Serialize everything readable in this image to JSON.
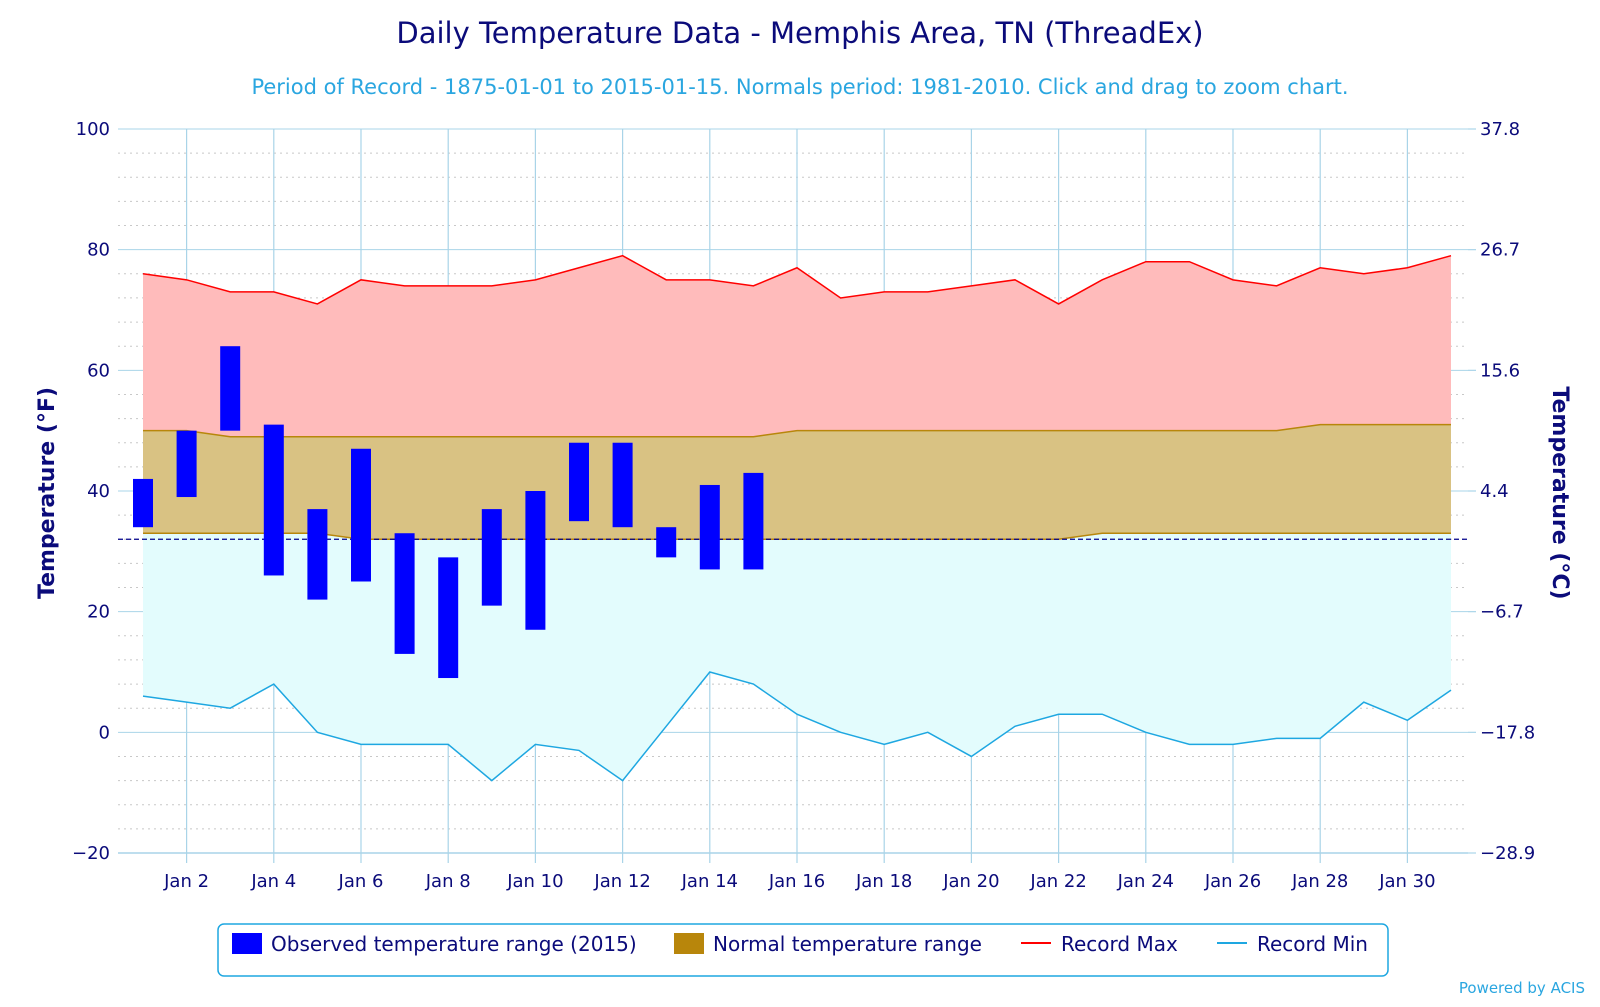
{
  "chart_data": {
    "type": "area-range with observed range bars",
    "title": "Daily Temperature Data - Memphis Area, TN (ThreadEx)",
    "subtitle": "Period of Record - 1875-01-01 to 2015-01-15. Normals period: 1981-2010. Click and drag to zoom chart.",
    "ylabel_left": "Temperature (°F)",
    "ylabel_right": "Temperature (°C)",
    "ylim": [
      -20,
      100
    ],
    "y_ticks": [
      100,
      80,
      60,
      40,
      20,
      0,
      -20
    ],
    "y_tick_labels": [
      "100",
      "80",
      "60",
      "40",
      "20",
      "0",
      "−20"
    ],
    "y2_tick_labels": [
      "37.8",
      "26.7",
      "15.6",
      "4.4",
      "−6.7",
      "−17.8",
      "−28.9"
    ],
    "freezing_line_f": 32,
    "days": [
      1,
      2,
      3,
      4,
      5,
      6,
      7,
      8,
      9,
      10,
      11,
      12,
      13,
      14,
      15,
      16,
      17,
      18,
      19,
      20,
      21,
      22,
      23,
      24,
      25,
      26,
      27,
      28,
      29,
      30,
      31
    ],
    "x_tick_days": [
      2,
      4,
      6,
      8,
      10,
      12,
      14,
      16,
      18,
      20,
      22,
      24,
      26,
      28,
      30
    ],
    "x_tick_labels": [
      "Jan 2",
      "Jan 4",
      "Jan 6",
      "Jan 8",
      "Jan 10",
      "Jan 12",
      "Jan 14",
      "Jan 16",
      "Jan 18",
      "Jan 20",
      "Jan 22",
      "Jan 24",
      "Jan 26",
      "Jan 28",
      "Jan 30"
    ],
    "record_max": [
      76,
      75,
      73,
      73,
      71,
      75,
      74,
      74,
      74,
      75,
      77,
      79,
      75,
      75,
      74,
      77,
      72,
      73,
      73,
      74,
      75,
      71,
      75,
      78,
      78,
      75,
      74,
      77,
      76,
      77,
      79
    ],
    "record_min": [
      6,
      5,
      4,
      8,
      0,
      -2,
      -2,
      -2,
      -8,
      -2,
      -3,
      -8,
      1,
      10,
      8,
      3,
      0,
      -2,
      0,
      -4,
      1,
      3,
      3,
      0,
      -2,
      -2,
      -1,
      -1,
      5,
      2,
      7
    ],
    "normal_high": [
      50,
      50,
      49,
      49,
      49,
      49,
      49,
      49,
      49,
      49,
      49,
      49,
      49,
      49,
      49,
      50,
      50,
      50,
      50,
      50,
      50,
      50,
      50,
      50,
      50,
      50,
      50,
      51,
      51,
      51,
      51
    ],
    "normal_low": [
      33,
      33,
      33,
      33,
      33,
      32,
      32,
      32,
      32,
      32,
      32,
      32,
      32,
      32,
      32,
      32,
      32,
      32,
      32,
      32,
      32,
      32,
      33,
      33,
      33,
      33,
      33,
      33,
      33,
      33,
      33
    ],
    "observed": [
      {
        "day": 1,
        "low": 34,
        "high": 42
      },
      {
        "day": 2,
        "low": 39,
        "high": 50
      },
      {
        "day": 3,
        "low": 50,
        "high": 64
      },
      {
        "day": 4,
        "low": 26,
        "high": 51
      },
      {
        "day": 5,
        "low": 22,
        "high": 37
      },
      {
        "day": 6,
        "low": 25,
        "high": 47
      },
      {
        "day": 7,
        "low": 13,
        "high": 33
      },
      {
        "day": 8,
        "low": 9,
        "high": 29
      },
      {
        "day": 9,
        "low": 21,
        "high": 37
      },
      {
        "day": 10,
        "low": 17,
        "high": 40
      },
      {
        "day": 11,
        "low": 35,
        "high": 48
      },
      {
        "day": 12,
        "low": 34,
        "high": 48
      },
      {
        "day": 13,
        "low": 29,
        "high": 34
      },
      {
        "day": 14,
        "low": 27,
        "high": 41
      },
      {
        "day": 15,
        "low": 27,
        "high": 43
      }
    ],
    "legend": [
      {
        "label": "Observed temperature range (2015)",
        "color": "#0000ff",
        "kind": "box"
      },
      {
        "label": "Normal temperature range",
        "color": "#b8860b",
        "kind": "box"
      },
      {
        "label": "Record Max",
        "color": "#ff0000",
        "kind": "line"
      },
      {
        "label": "Record Min",
        "color": "#1ea7e1",
        "kind": "line"
      }
    ],
    "credits": "Powered by ACIS",
    "colors": {
      "record_max_fill": "#ffbbbb",
      "normal_fill": "#d9c283",
      "record_min_fill": "#e3fcfd",
      "record_max_line": "#ff0000",
      "record_min_line": "#1ea7e1",
      "normal_line": "#b8860b",
      "observed": "#0000ff",
      "freezing_line": "#00008b",
      "grid": "#a9d4e8",
      "minor_grid": "#c8c8c8",
      "text": "#0b0b7a",
      "subtitle": "#2aa6e0"
    }
  }
}
